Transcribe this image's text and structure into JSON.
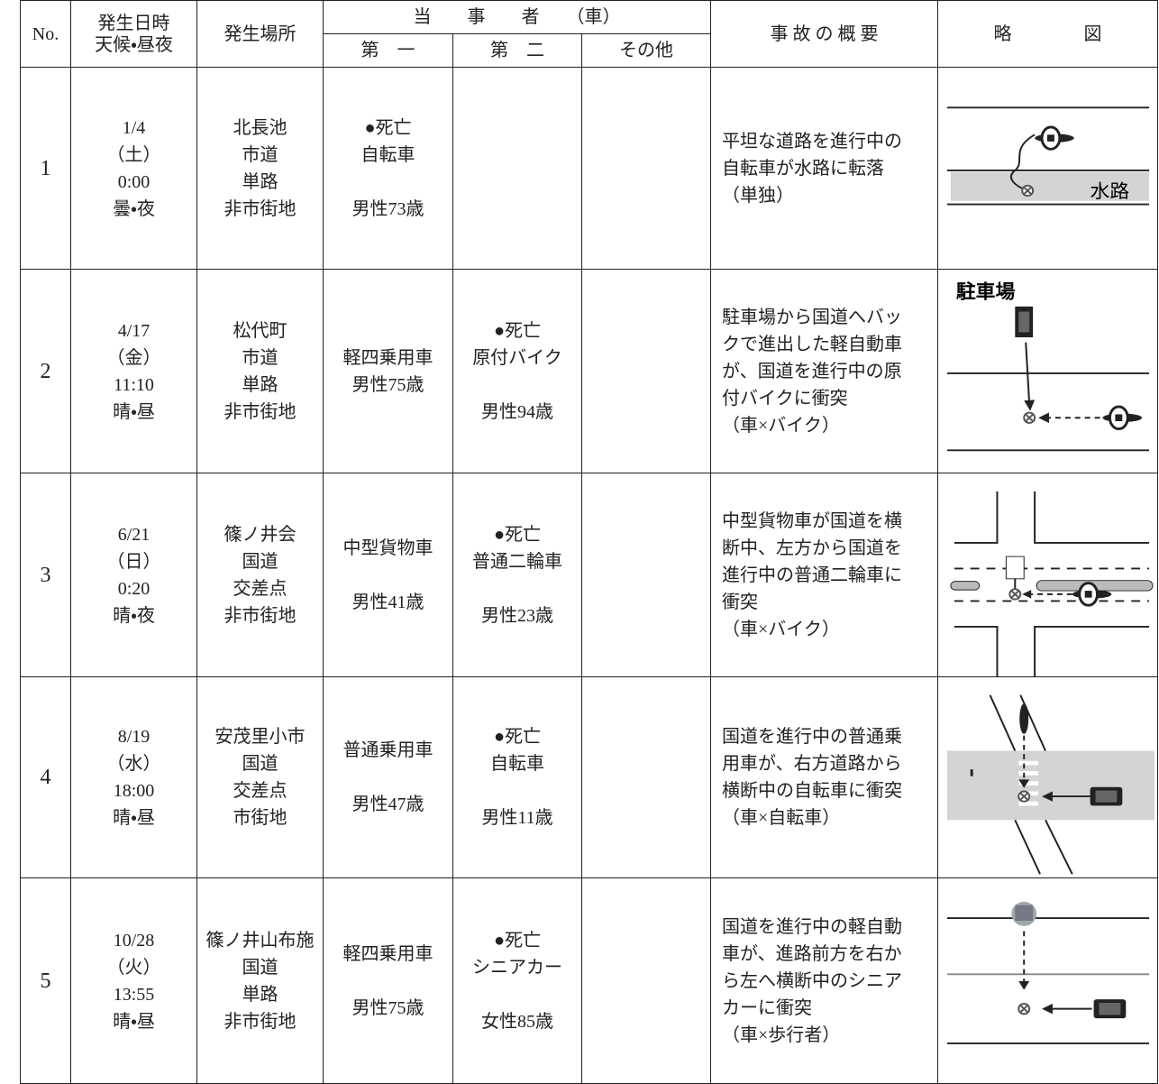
{
  "header": {
    "no": "No.",
    "datetime": [
      "発生日時",
      "天候・昼夜"
    ],
    "place": "発生場所",
    "parties": "当　　事　　者　　（車）",
    "first": "第　一",
    "second": "第　二",
    "other": "その他",
    "summary": "事 故 の 概 要",
    "diagram": "略　　　　図"
  },
  "table": {
    "rows": [
      {
        "no": "1",
        "datetime": [
          "1/4",
          "（土）",
          "0:00",
          "曇・夜"
        ],
        "place": [
          "北長池",
          "市道",
          "単路",
          "非市街地"
        ],
        "first": [
          [
            "●死亡",
            "自転車"
          ],
          [
            "男性73歳"
          ]
        ],
        "summary": [
          "平坦な道路を進行中の",
          "自転車が水路に転落",
          "（単独）"
        ],
        "diagram_label": "水路"
      },
      {
        "no": "2",
        "datetime": [
          "4/17",
          "（金）",
          "11:10",
          "晴・昼"
        ],
        "place": [
          "松代町",
          "市道",
          "単路",
          "非市街地"
        ],
        "first": [
          [
            "軽四乗用車",
            "男性75歳"
          ]
        ],
        "second": [
          [
            "●死亡",
            "原付バイク"
          ],
          [
            "男性94歳"
          ]
        ],
        "summary": [
          "駐車場から国道へバッ",
          "クで進出した軽自動車",
          "が、国道を進行中の原",
          "付バイクに衝突",
          "（車×バイク）"
        ],
        "diagram_label": "駐車場"
      },
      {
        "no": "3",
        "datetime": [
          "6/21",
          "（日）",
          "0:20",
          "晴・夜"
        ],
        "place": [
          "篠ノ井会",
          "国道",
          "交差点",
          "非市街地"
        ],
        "first": [
          [
            "中型貨物車"
          ],
          [
            "男性41歳"
          ]
        ],
        "second": [
          [
            "●死亡",
            "普通二輪車"
          ],
          [
            "男性23歳"
          ]
        ],
        "summary": [
          "中型貨物車が国道を横",
          "断中、左方から国道を",
          "進行中の普通二輪車に",
          "衝突",
          "（車×バイク）"
        ]
      },
      {
        "no": "4",
        "datetime": [
          "8/19",
          "（水）",
          "18:00",
          "晴・昼"
        ],
        "place": [
          "安茂里小市",
          "国道",
          "交差点",
          "市街地"
        ],
        "first": [
          [
            "普通乗用車"
          ],
          [
            "男性47歳"
          ]
        ],
        "second": [
          [
            "●死亡",
            "自転車"
          ],
          [
            "男性11歳"
          ]
        ],
        "summary": [
          "国道を進行中の普通乗",
          "用車が、右方道路から",
          "横断中の自転車に衝突",
          "（車×自転車）"
        ]
      },
      {
        "no": "5",
        "datetime": [
          "10/28",
          "（火）",
          "13:55",
          "晴・昼"
        ],
        "place": [
          "篠ノ井山布施",
          "国道",
          "単路",
          "非市街地"
        ],
        "first": [
          [
            "軽四乗用車"
          ],
          [
            "男性75歳"
          ]
        ],
        "second": [
          [
            "●死亡",
            "シニアカー"
          ],
          [
            "女性85歳"
          ]
        ],
        "summary": [
          "国道を進行中の軽自動",
          "車が、進路前方を右か",
          "ら左へ横断中のシニア",
          "カーに衝突",
          "（車×歩行者）"
        ]
      }
    ]
  }
}
